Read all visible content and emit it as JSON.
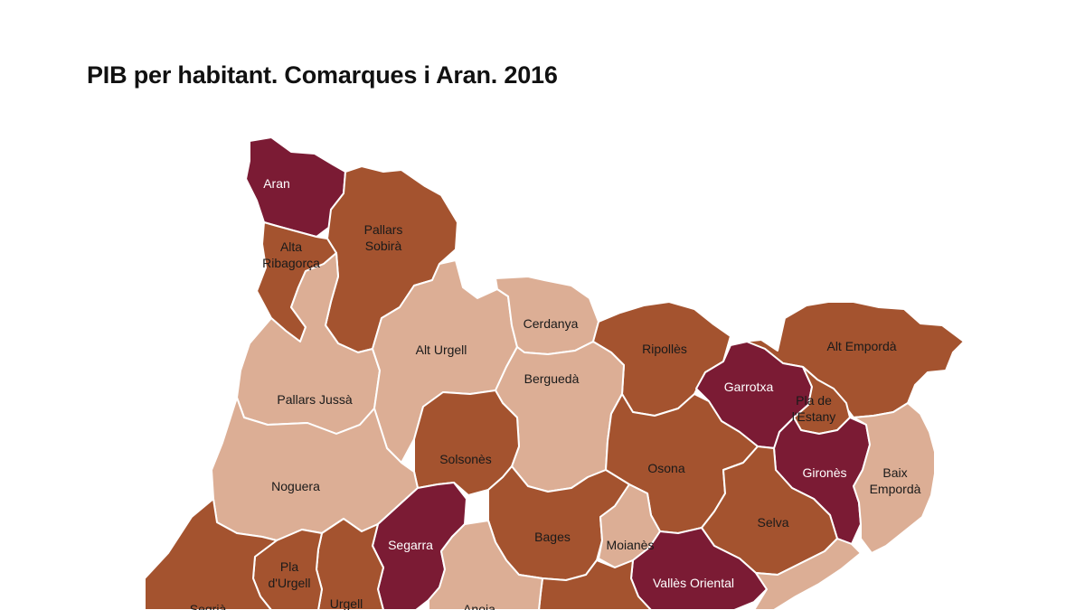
{
  "title": "PIB per habitant. Comarques i Aran. 2016",
  "colors": {
    "dark": "#7b1b34",
    "medium": "#a4532f",
    "light": "#dcae95",
    "label_on_dark": "#ffffff",
    "label_on_light": "#1a1a1a"
  },
  "regions": [
    {
      "id": "aran",
      "name": "Aran",
      "label_lines": [
        "Aran"
      ],
      "shade": "dark"
    },
    {
      "id": "alta-ribagorca",
      "name": "Alta Ribagorça",
      "label_lines": [
        "Alta",
        "Ribagorça"
      ],
      "shade": "medium"
    },
    {
      "id": "pallars-sobira",
      "name": "Pallars Sobirà",
      "label_lines": [
        "Pallars",
        "Sobirà"
      ],
      "shade": "medium"
    },
    {
      "id": "alt-urgell",
      "name": "Alt Urgell",
      "label_lines": [
        "Alt Urgell"
      ],
      "shade": "light"
    },
    {
      "id": "cerdanya",
      "name": "Cerdanya",
      "label_lines": [
        "Cerdanya"
      ],
      "shade": "light"
    },
    {
      "id": "ripolles",
      "name": "Ripollès",
      "label_lines": [
        "Ripollès"
      ],
      "shade": "medium"
    },
    {
      "id": "alt-emporda",
      "name": "Alt Empordà",
      "label_lines": [
        "Alt Empordà"
      ],
      "shade": "medium"
    },
    {
      "id": "garrotxa",
      "name": "Garrotxa",
      "label_lines": [
        "Garrotxa"
      ],
      "shade": "dark"
    },
    {
      "id": "pla-de-lestany",
      "name": "Pla de l'Estany",
      "label_lines": [
        "Pla de",
        "l'Estany"
      ],
      "shade": "medium"
    },
    {
      "id": "pallars-jussa",
      "name": "Pallars Jussà",
      "label_lines": [
        "Pallars Jussà"
      ],
      "shade": "light"
    },
    {
      "id": "bergueda",
      "name": "Berguedà",
      "label_lines": [
        "Berguedà"
      ],
      "shade": "light"
    },
    {
      "id": "solsones",
      "name": "Solsonès",
      "label_lines": [
        "Solsonès"
      ],
      "shade": "medium"
    },
    {
      "id": "osona",
      "name": "Osona",
      "label_lines": [
        "Osona"
      ],
      "shade": "medium"
    },
    {
      "id": "girones",
      "name": "Gironès",
      "label_lines": [
        "Gironès"
      ],
      "shade": "dark"
    },
    {
      "id": "baix-emporda",
      "name": "Baix Empordà",
      "label_lines": [
        "Baix",
        "Empordà"
      ],
      "shade": "light"
    },
    {
      "id": "noguera",
      "name": "Noguera",
      "label_lines": [
        "Noguera"
      ],
      "shade": "light"
    },
    {
      "id": "selva",
      "name": "Selva",
      "label_lines": [
        "Selva"
      ],
      "shade": "medium"
    },
    {
      "id": "segarra",
      "name": "Segarra",
      "label_lines": [
        "Segarra"
      ],
      "shade": "dark"
    },
    {
      "id": "bages",
      "name": "Bages",
      "label_lines": [
        "Bages"
      ],
      "shade": "medium"
    },
    {
      "id": "moianes",
      "name": "Moianès",
      "label_lines": [
        "Moianès"
      ],
      "shade": "light"
    },
    {
      "id": "valles-oriental",
      "name": "Vallès Oriental",
      "label_lines": [
        "Vallès Oriental"
      ],
      "shade": "dark"
    },
    {
      "id": "pla-durgell",
      "name": "Pla d'Urgell",
      "label_lines": [
        "Pla",
        "d'Urgell"
      ],
      "shade": "medium"
    },
    {
      "id": "urgell",
      "name": "Urgell",
      "label_lines": [
        "Urgell"
      ],
      "shade": "medium"
    },
    {
      "id": "segria",
      "name": "Segrià",
      "label_lines": [
        "Segrià"
      ],
      "shade": "medium"
    },
    {
      "id": "anoia",
      "name": "Anoia",
      "label_lines": [
        "Anoia"
      ],
      "shade": "light"
    },
    {
      "id": "maresme",
      "name": "",
      "label_lines": [],
      "shade": "light"
    },
    {
      "id": "valles-occidental",
      "name": "",
      "label_lines": [],
      "shade": "medium"
    },
    {
      "id": "garrigues",
      "name": "",
      "label_lines": [],
      "shade": "light"
    },
    {
      "id": "conca",
      "name": "",
      "label_lines": [],
      "shade": "medium"
    }
  ]
}
